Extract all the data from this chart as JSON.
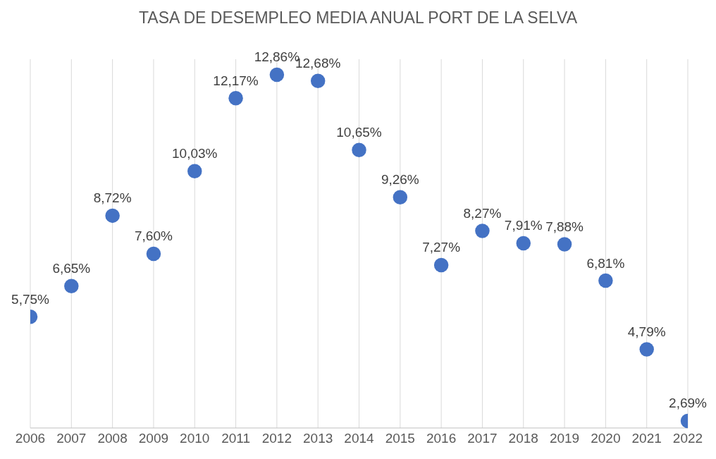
{
  "chart_data": {
    "type": "scatter",
    "title": "TASA DE DESEMPLEO MEDIA ANUAL PORT DE LA SELVA",
    "categories": [
      "2006",
      "2007",
      "2008",
      "2009",
      "2010",
      "2011",
      "2012",
      "2013",
      "2014",
      "2015",
      "2016",
      "2017",
      "2018",
      "2019",
      "2020",
      "2021",
      "2022"
    ],
    "values": [
      5.75,
      6.65,
      8.72,
      7.6,
      10.03,
      12.17,
      12.86,
      12.68,
      10.65,
      9.26,
      7.27,
      8.27,
      7.91,
      7.88,
      6.81,
      4.79,
      2.69
    ],
    "value_labels": [
      "5,75%",
      "6,65%",
      "8,72%",
      "7,60%",
      "10,03%",
      "12,17%",
      "12,86%",
      "12,68%",
      "10,65%",
      "9,26%",
      "7,27%",
      "8,27%",
      "7,91%",
      "7,88%",
      "6,81%",
      "4,79%",
      "2,69%"
    ],
    "color": "#4472c4",
    "marker": "circle",
    "grid": "x"
  }
}
